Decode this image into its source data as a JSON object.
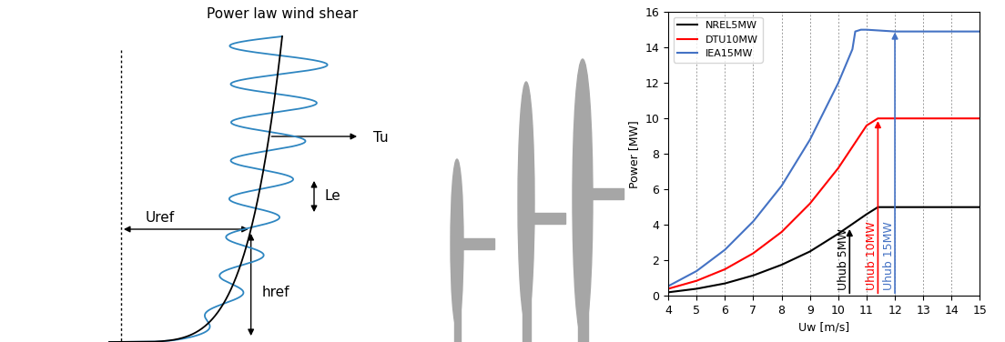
{
  "diagram": {
    "title": "Power law wind shear",
    "turbulence_label": "Tu",
    "length_scale_label": "Le",
    "reference_speed_label": "Uref",
    "reference_height_label": "href"
  },
  "chart_data": {
    "type": "line",
    "x_label": "Uw [m/s]",
    "y_label": "Power [MW]",
    "xlim": [
      4,
      15
    ],
    "ylim": [
      0,
      16
    ],
    "xticks": [
      4,
      5,
      6,
      7,
      8,
      9,
      10,
      11,
      12,
      13,
      14,
      15
    ],
    "yticks": [
      0,
      2,
      4,
      6,
      8,
      10,
      12,
      14,
      16
    ],
    "grid": "x",
    "legend": "upper left",
    "series": [
      {
        "name": "NREL5MW",
        "color": "#000000",
        "x": [
          4,
          5,
          6,
          7,
          8,
          9,
          10,
          11,
          11.4,
          12,
          13,
          14,
          15
        ],
        "values": [
          0.2,
          0.4,
          0.7,
          1.15,
          1.75,
          2.5,
          3.5,
          4.6,
          5.0,
          5.0,
          5.0,
          5.0,
          5.0
        ]
      },
      {
        "name": "DTU10MW",
        "color": "#ff0000",
        "x": [
          4,
          5,
          6,
          7,
          8,
          9,
          10,
          10.5,
          11,
          11.4,
          12,
          13,
          14,
          15
        ],
        "values": [
          0.4,
          0.85,
          1.5,
          2.4,
          3.6,
          5.2,
          7.2,
          8.4,
          9.6,
          10.0,
          10.0,
          10.0,
          10.0,
          10.0
        ]
      },
      {
        "name": "IEA15MW",
        "color": "#4472c4",
        "x": [
          4,
          5,
          6,
          7,
          8,
          9,
          10,
          10.5,
          10.6,
          10.8,
          11,
          12,
          13,
          14,
          15
        ],
        "values": [
          0.55,
          1.4,
          2.6,
          4.2,
          6.2,
          8.8,
          12.0,
          13.9,
          14.9,
          15.0,
          15.0,
          14.9,
          14.9,
          14.9,
          14.9
        ]
      }
    ],
    "annotations": [
      {
        "text": "Uhub 5MW",
        "x": 10.4,
        "y": 3.9,
        "color": "#000000"
      },
      {
        "text": "Uhub 10MW",
        "x": 11.4,
        "y": 10.0,
        "color": "#ff0000"
      },
      {
        "text": "Uhub 15MW",
        "x": 12.0,
        "y": 15.0,
        "color": "#4472c4"
      }
    ]
  }
}
